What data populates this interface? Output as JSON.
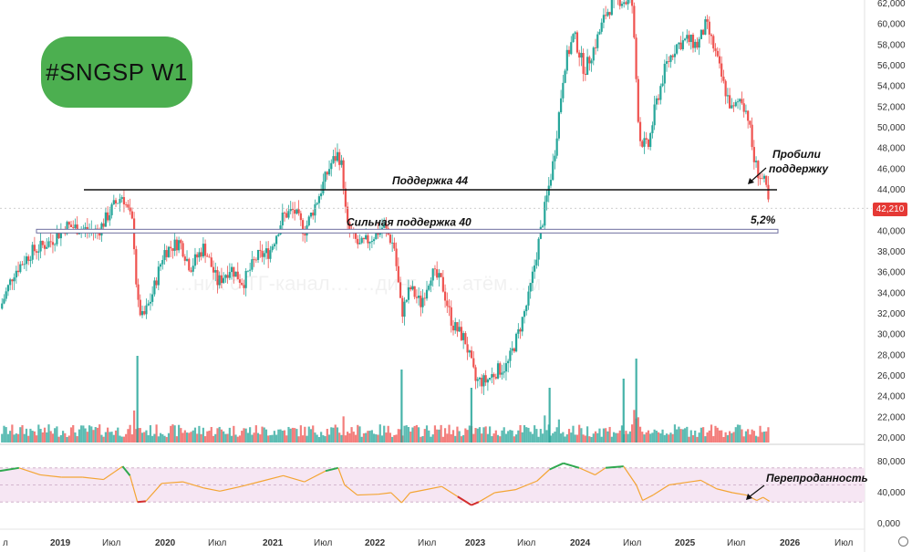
{
  "tag_label": "#SNGSP W1",
  "current_price_label": "42,210",
  "watermark": "…ник с ТГ-канал… …динг… …атём…м",
  "colors": {
    "tag_bg": "#4caf50",
    "bull": "#26a69a",
    "bear": "#ef5350",
    "price_badge": "#e53935",
    "rsi_line_mid": "#f4a534",
    "rsi_line_high": "#2fa84f",
    "rsi_line_low": "#d32f2f",
    "rsi_band_bg": "#f6e6f3"
  },
  "chart_data": [
    {
      "type": "candlestick",
      "ticker": "SNGSP",
      "timeframe": "W1",
      "y_axis": {
        "min": 20000,
        "max": 62000,
        "ticks": [
          "20,000",
          "22,000",
          "24,000",
          "26,000",
          "28,000",
          "30,000",
          "32,000",
          "34,000",
          "36,000",
          "38,000",
          "40,000",
          "42,000",
          "44,000",
          "46,000",
          "48,000",
          "50,000",
          "52,000",
          "54,000",
          "56,000",
          "58,000",
          "60,000",
          "62,000"
        ]
      },
      "x_axis": {
        "labels": [
          "л",
          "2019",
          "Июл",
          "2020",
          "Июл",
          "2021",
          "Июл",
          "2022",
          "Июл",
          "2023",
          "Июл",
          "2024",
          "Июл",
          "2025",
          "Июл",
          "2026",
          "Июл"
        ],
        "year_labels": [
          "2019",
          "2020",
          "2021",
          "2022",
          "2023",
          "2024",
          "2025",
          "2026"
        ]
      },
      "close_path": [
        {
          "t": 2018.42,
          "v": 32.5
        },
        {
          "t": 2018.55,
          "v": 36.0
        },
        {
          "t": 2018.72,
          "v": 38.0
        },
        {
          "t": 2018.9,
          "v": 39.0
        },
        {
          "t": 2019.05,
          "v": 40.5
        },
        {
          "t": 2019.2,
          "v": 40.2
        },
        {
          "t": 2019.35,
          "v": 40.0
        },
        {
          "t": 2019.5,
          "v": 42.5
        },
        {
          "t": 2019.58,
          "v": 43.5
        },
        {
          "t": 2019.68,
          "v": 40.5
        },
        {
          "t": 2019.72,
          "v": 33.0
        },
        {
          "t": 2019.77,
          "v": 31.5
        },
        {
          "t": 2019.85,
          "v": 33.5
        },
        {
          "t": 2019.97,
          "v": 38.0
        },
        {
          "t": 2020.12,
          "v": 39.0
        },
        {
          "t": 2020.22,
          "v": 36.5
        },
        {
          "t": 2020.35,
          "v": 38.5
        },
        {
          "t": 2020.48,
          "v": 35.0
        },
        {
          "t": 2020.6,
          "v": 36.5
        },
        {
          "t": 2020.72,
          "v": 35.0
        },
        {
          "t": 2020.85,
          "v": 37.5
        },
        {
          "t": 2020.97,
          "v": 38.0
        },
        {
          "t": 2021.1,
          "v": 41.5
        },
        {
          "t": 2021.2,
          "v": 42.0
        },
        {
          "t": 2021.3,
          "v": 40.0
        },
        {
          "t": 2021.42,
          "v": 43.0
        },
        {
          "t": 2021.55,
          "v": 46.5
        },
        {
          "t": 2021.62,
          "v": 47.5
        },
        {
          "t": 2021.66,
          "v": 46.0
        },
        {
          "t": 2021.7,
          "v": 40.5
        },
        {
          "t": 2021.82,
          "v": 38.5
        },
        {
          "t": 2021.95,
          "v": 39.5
        },
        {
          "t": 2022.05,
          "v": 40.5
        },
        {
          "t": 2022.15,
          "v": 38.5
        },
        {
          "t": 2022.22,
          "v": 32.0
        },
        {
          "t": 2022.3,
          "v": 34.5
        },
        {
          "t": 2022.4,
          "v": 33.0
        },
        {
          "t": 2022.5,
          "v": 36.0
        },
        {
          "t": 2022.6,
          "v": 35.0
        },
        {
          "t": 2022.7,
          "v": 31.0
        },
        {
          "t": 2022.82,
          "v": 29.5
        },
        {
          "t": 2022.92,
          "v": 25.5
        },
        {
          "t": 2023.02,
          "v": 25.5
        },
        {
          "t": 2023.12,
          "v": 26.5
        },
        {
          "t": 2023.22,
          "v": 27.0
        },
        {
          "t": 2023.32,
          "v": 30.0
        },
        {
          "t": 2023.42,
          "v": 33.5
        },
        {
          "t": 2023.5,
          "v": 38.0
        },
        {
          "t": 2023.58,
          "v": 42.5
        },
        {
          "t": 2023.66,
          "v": 47.0
        },
        {
          "t": 2023.76,
          "v": 56.0
        },
        {
          "t": 2023.85,
          "v": 59.0
        },
        {
          "t": 2023.95,
          "v": 55.5
        },
        {
          "t": 2024.05,
          "v": 58.0
        },
        {
          "t": 2024.15,
          "v": 61.0
        },
        {
          "t": 2024.25,
          "v": 62.5
        },
        {
          "t": 2024.4,
          "v": 62.0
        },
        {
          "t": 2024.47,
          "v": 49.0
        },
        {
          "t": 2024.55,
          "v": 48.0
        },
        {
          "t": 2024.62,
          "v": 52.0
        },
        {
          "t": 2024.72,
          "v": 56.0
        },
        {
          "t": 2024.82,
          "v": 58.0
        },
        {
          "t": 2024.92,
          "v": 58.5
        },
        {
          "t": 2025.02,
          "v": 58.0
        },
        {
          "t": 2025.1,
          "v": 60.0
        },
        {
          "t": 2025.18,
          "v": 57.5
        },
        {
          "t": 2025.27,
          "v": 54.0
        },
        {
          "t": 2025.35,
          "v": 51.5
        },
        {
          "t": 2025.43,
          "v": 53.0
        },
        {
          "t": 2025.5,
          "v": 51.0
        },
        {
          "t": 2025.55,
          "v": 47.0
        },
        {
          "t": 2025.6,
          "v": 45.5
        },
        {
          "t": 2025.66,
          "v": 44.5
        },
        {
          "t": 2025.7,
          "v": 42.2
        }
      ],
      "annotations": {
        "support_line_44": {
          "value": 44000,
          "label": "Поддержка 44"
        },
        "support_line_40": {
          "value": 40000,
          "label": "Сильная поддержка 40"
        },
        "broken_note": [
          "Пробили",
          "поддержку"
        ],
        "distance_note": "5,2%"
      },
      "current_price": 42210
    },
    {
      "type": "area",
      "name": "volume",
      "note": "volume histogram, relative heights"
    },
    {
      "type": "line",
      "y_axis": {
        "ticks": [
          "80,000",
          "40,000",
          "0,000"
        ]
      },
      "band": [
        28,
        72
      ],
      "annotation": "Перепроданность",
      "rsi_path": [
        {
          "t": 2018.42,
          "v": 68
        },
        {
          "t": 2018.6,
          "v": 72
        },
        {
          "t": 2018.8,
          "v": 63
        },
        {
          "t": 2019.0,
          "v": 60
        },
        {
          "t": 2019.2,
          "v": 60
        },
        {
          "t": 2019.4,
          "v": 57
        },
        {
          "t": 2019.58,
          "v": 74
        },
        {
          "t": 2019.65,
          "v": 62
        },
        {
          "t": 2019.72,
          "v": 28
        },
        {
          "t": 2019.8,
          "v": 29
        },
        {
          "t": 2019.95,
          "v": 52
        },
        {
          "t": 2020.15,
          "v": 54
        },
        {
          "t": 2020.35,
          "v": 46
        },
        {
          "t": 2020.5,
          "v": 42
        },
        {
          "t": 2020.7,
          "v": 48
        },
        {
          "t": 2020.9,
          "v": 55
        },
        {
          "t": 2021.1,
          "v": 62
        },
        {
          "t": 2021.3,
          "v": 54
        },
        {
          "t": 2021.5,
          "v": 68
        },
        {
          "t": 2021.62,
          "v": 72
        },
        {
          "t": 2021.68,
          "v": 50
        },
        {
          "t": 2021.8,
          "v": 37
        },
        {
          "t": 2022.0,
          "v": 38
        },
        {
          "t": 2022.12,
          "v": 40
        },
        {
          "t": 2022.22,
          "v": 27
        },
        {
          "t": 2022.3,
          "v": 40
        },
        {
          "t": 2022.45,
          "v": 44
        },
        {
          "t": 2022.6,
          "v": 48
        },
        {
          "t": 2022.75,
          "v": 35
        },
        {
          "t": 2022.88,
          "v": 24
        },
        {
          "t": 2022.95,
          "v": 28
        },
        {
          "t": 2023.1,
          "v": 40
        },
        {
          "t": 2023.3,
          "v": 44
        },
        {
          "t": 2023.5,
          "v": 55
        },
        {
          "t": 2023.62,
          "v": 70
        },
        {
          "t": 2023.75,
          "v": 78
        },
        {
          "t": 2023.9,
          "v": 72
        },
        {
          "t": 2024.05,
          "v": 63
        },
        {
          "t": 2024.15,
          "v": 72
        },
        {
          "t": 2024.32,
          "v": 74
        },
        {
          "t": 2024.44,
          "v": 50
        },
        {
          "t": 2024.5,
          "v": 30
        },
        {
          "t": 2024.6,
          "v": 37
        },
        {
          "t": 2024.75,
          "v": 50
        },
        {
          "t": 2024.9,
          "v": 53
        },
        {
          "t": 2025.05,
          "v": 56
        },
        {
          "t": 2025.2,
          "v": 45
        },
        {
          "t": 2025.35,
          "v": 40
        },
        {
          "t": 2025.48,
          "v": 37
        },
        {
          "t": 2025.58,
          "v": 30
        },
        {
          "t": 2025.64,
          "v": 34
        },
        {
          "t": 2025.7,
          "v": 29
        }
      ]
    }
  ]
}
